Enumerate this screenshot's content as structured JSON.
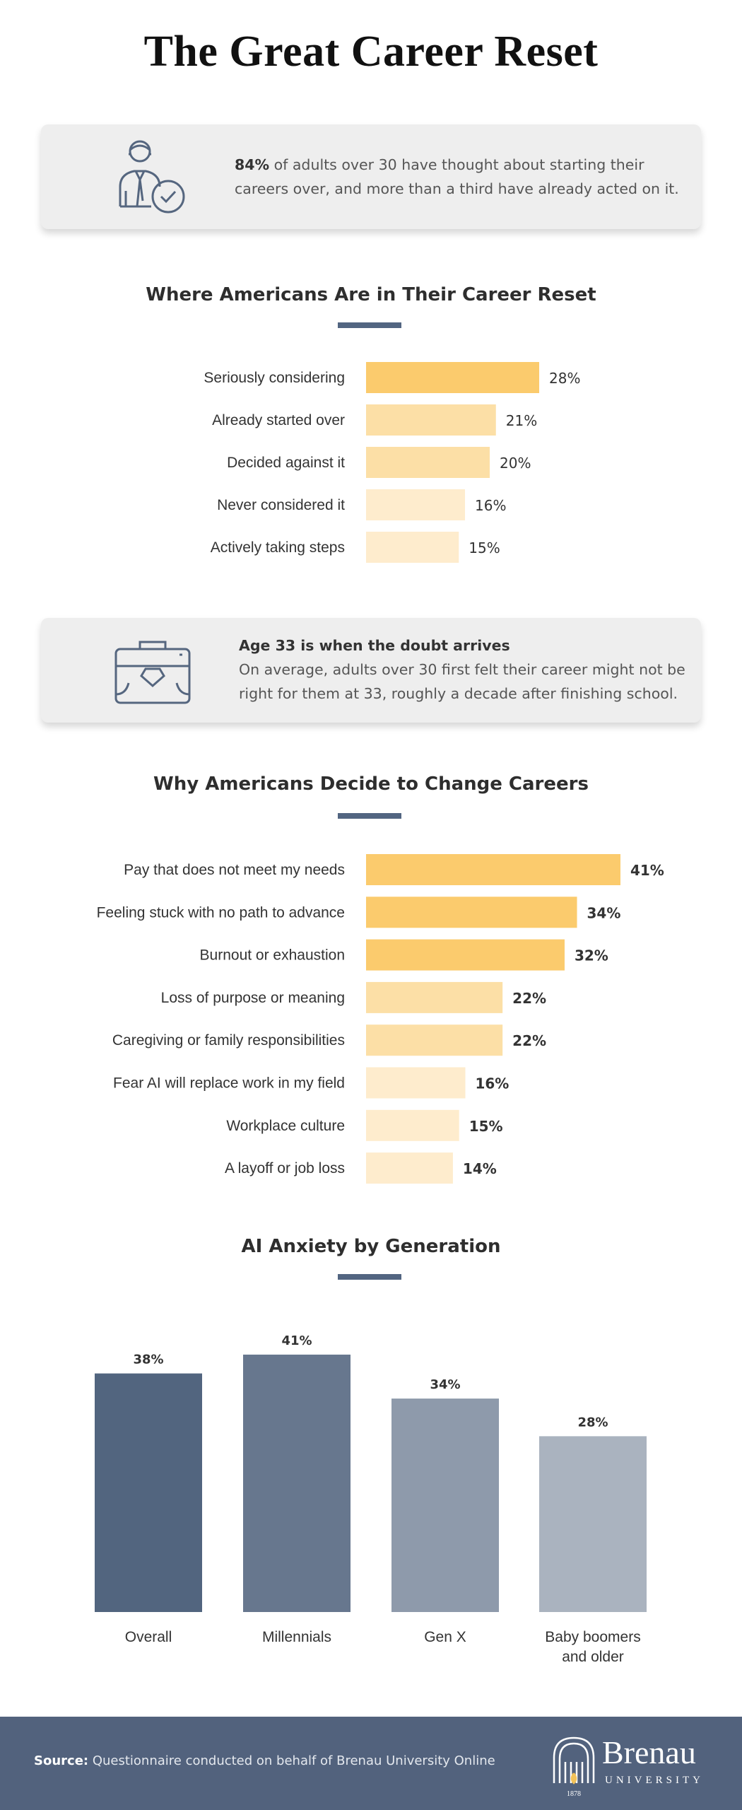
{
  "title": "The Great Career Reset",
  "card1": {
    "highlight": "84%",
    "text": " of adults over 30 have thought about starting their careers over, and more than a third have already acted on it.",
    "icon": "person-check-icon"
  },
  "card2": {
    "heading": "Age 33 is when the doubt arrives",
    "text": "On average, adults over 30 first felt their career might not be right for them at 33, roughly a decade after finishing school.",
    "icon": "briefcase-icon"
  },
  "colors": {
    "accent": "#526581",
    "bar_strong": "#fbcb6d",
    "bar_mid": "#fcdfa6",
    "bar_light": "#feeccd",
    "col_1": "#52657f",
    "col_2": "#67778e",
    "col_3": "#8e9aab",
    "col_4": "#aab3bf"
  },
  "chart_data": [
    {
      "type": "bar",
      "orientation": "horizontal",
      "title": "Where Americans Are in Their Career Reset",
      "categories": [
        "Seriously considering",
        "Already started over",
        "Decided against it",
        "Never considered it",
        "Actively taking steps"
      ],
      "values": [
        28,
        21,
        20,
        16,
        15
      ],
      "labels": [
        "28%",
        "21%",
        "20%",
        "16%",
        "15%"
      ],
      "unit": "%"
    },
    {
      "type": "bar",
      "orientation": "horizontal",
      "title": "Why Americans Decide to Change Careers",
      "categories": [
        "Pay that does not meet my needs",
        "Feeling stuck with no path to advance",
        "Burnout or exhaustion",
        "Loss of purpose or meaning",
        "Caregiving or family responsibilities",
        "Fear AI will replace work in my field",
        "Workplace culture",
        "A layoff or job loss"
      ],
      "values": [
        41,
        34,
        32,
        22,
        22,
        16,
        15,
        14
      ],
      "labels": [
        "41%",
        "34%",
        "32%",
        "22%",
        "22%",
        "16%",
        "15%",
        "14%"
      ],
      "unit": "%"
    },
    {
      "type": "bar",
      "orientation": "vertical",
      "title": "AI Anxiety by Generation",
      "categories": [
        "Overall",
        "Millennials",
        "Gen X",
        "Baby boomers and older"
      ],
      "category_lines": [
        [
          "Overall"
        ],
        [
          "Millennials"
        ],
        [
          "Gen X"
        ],
        [
          "Baby boomers",
          "and older"
        ]
      ],
      "values": [
        38,
        41,
        34,
        28
      ],
      "labels": [
        "38%",
        "41%",
        "34%",
        "28%"
      ],
      "unit": "%"
    }
  ],
  "footer": {
    "source_label": "Source:",
    "source_text": " Questionnaire conducted on behalf of Brenau University Online",
    "logo_name": "Brenau",
    "logo_sub": "UNIVERSITY",
    "logo_year": "1878",
    "logo_icon": "arch-flame-icon"
  }
}
